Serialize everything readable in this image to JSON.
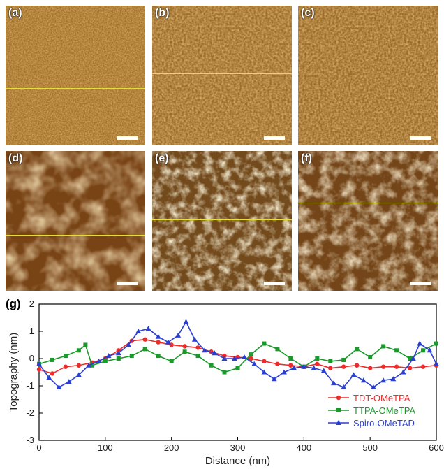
{
  "panels": [
    {
      "label": "(a)",
      "type": "phase",
      "color": "#a26f2b"
    },
    {
      "label": "(b)",
      "type": "phase",
      "color": "#9c6a2a"
    },
    {
      "label": "(c)",
      "type": "phase",
      "color": "#9a6829"
    },
    {
      "label": "(d)",
      "type": "height",
      "color": "#9a5a1e"
    },
    {
      "label": "(e)",
      "type": "height",
      "color": "#b07a30"
    },
    {
      "label": "(f)",
      "type": "height",
      "color": "#a66a25"
    }
  ],
  "line_profile_color": "#e6dc3a",
  "chart_data": {
    "panel_label": "(g)",
    "type": "line",
    "xlabel": "Distance (nm)",
    "ylabel": "Topography (nm)",
    "xlim": [
      0,
      600
    ],
    "ylim": [
      -3,
      2
    ],
    "xticks": [
      0,
      100,
      200,
      300,
      400,
      500,
      600
    ],
    "yticks": [
      -3,
      -2,
      -1,
      0,
      1,
      2
    ],
    "legend_position": "bottom-right",
    "series": [
      {
        "name": "TDT-OMeTPA",
        "color": "#ee2b2b",
        "marker": "circle",
        "x": [
          0,
          20,
          40,
          60,
          80,
          100,
          120,
          140,
          160,
          180,
          200,
          220,
          240,
          260,
          280,
          300,
          320,
          340,
          360,
          380,
          400,
          420,
          440,
          460,
          480,
          500,
          520,
          540,
          560,
          580,
          600
        ],
        "y": [
          -0.4,
          -0.55,
          -0.3,
          -0.25,
          -0.15,
          0.0,
          0.3,
          0.65,
          0.7,
          0.6,
          0.5,
          0.45,
          0.4,
          0.25,
          0.1,
          0.05,
          0.0,
          -0.1,
          -0.2,
          -0.25,
          -0.3,
          -0.2,
          -0.35,
          -0.3,
          -0.25,
          -0.35,
          -0.3,
          -0.3,
          -0.35,
          -0.3,
          -0.25
        ]
      },
      {
        "name": "TTPA-OMeTPA",
        "color": "#1a9a2a",
        "marker": "square",
        "x": [
          0,
          20,
          40,
          60,
          70,
          80,
          100,
          120,
          140,
          160,
          180,
          200,
          220,
          240,
          260,
          280,
          300,
          320,
          340,
          360,
          380,
          400,
          420,
          440,
          460,
          480,
          500,
          520,
          540,
          560,
          580,
          600
        ],
        "y": [
          -0.2,
          -0.05,
          0.1,
          0.3,
          0.5,
          -0.25,
          -0.1,
          0.0,
          0.1,
          0.35,
          0.1,
          -0.1,
          0.25,
          0.1,
          -0.25,
          -0.5,
          -0.35,
          0.15,
          0.55,
          0.35,
          0.0,
          -0.3,
          0.0,
          -0.1,
          -0.05,
          0.35,
          0.05,
          0.45,
          0.3,
          0.0,
          0.3,
          0.55
        ]
      },
      {
        "name": "Spiro-OMeTAD",
        "color": "#2a3fd0",
        "marker": "triangle",
        "x": [
          0,
          15,
          30,
          45,
          60,
          75,
          90,
          105,
          120,
          135,
          150,
          165,
          180,
          195,
          210,
          222,
          235,
          250,
          265,
          280,
          295,
          310,
          325,
          340,
          355,
          370,
          385,
          400,
          415,
          430,
          445,
          460,
          475,
          490,
          505,
          520,
          535,
          550,
          565,
          575,
          590,
          600
        ],
        "y": [
          -0.2,
          -0.7,
          -1.05,
          -0.85,
          -0.6,
          -0.25,
          -0.1,
          0.1,
          0.2,
          0.5,
          1.0,
          1.1,
          0.8,
          0.6,
          0.85,
          1.35,
          0.7,
          0.3,
          0.2,
          0.0,
          0.0,
          0.05,
          -0.2,
          -0.5,
          -0.75,
          -0.5,
          -0.35,
          -0.3,
          -0.35,
          -0.45,
          -0.9,
          -1.05,
          -0.6,
          -0.8,
          -1.05,
          -0.8,
          -0.75,
          -0.5,
          0.0,
          0.55,
          0.3,
          -0.2
        ]
      }
    ]
  }
}
